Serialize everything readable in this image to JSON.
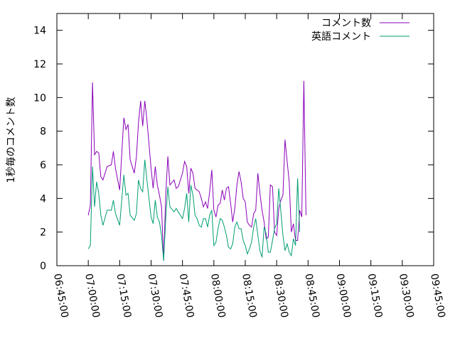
{
  "chart_data": {
    "type": "line",
    "ylabel": "1秒毎のコメント数",
    "xlabel": "",
    "ylim": [
      0,
      15
    ],
    "xlim": [
      "06:45:00",
      "09:45:00"
    ],
    "x_ticks": [
      "06:45:00",
      "07:00:00",
      "07:15:00",
      "07:30:00",
      "07:45:00",
      "08:00:00",
      "08:15:00",
      "08:30:00",
      "08:45:00",
      "09:00:00",
      "09:15:00",
      "09:30:00",
      "09:45:00"
    ],
    "y_ticks": [
      "0",
      "2",
      "4",
      "6",
      "8",
      "10",
      "12",
      "14"
    ],
    "legend_position": "top-right",
    "grid": false,
    "series": [
      {
        "name": "コメント数",
        "color": "#8a00b8",
        "points": [
          [
            "07:00:00",
            3.0
          ],
          [
            "07:01:00",
            3.6
          ],
          [
            "07:02:00",
            10.9
          ],
          [
            "07:03:00",
            6.6
          ],
          [
            "07:04:00",
            6.8
          ],
          [
            "07:05:00",
            6.7
          ],
          [
            "07:06:00",
            5.3
          ],
          [
            "07:07:00",
            5.1
          ],
          [
            "07:09:00",
            5.9
          ],
          [
            "07:11:00",
            6.0
          ],
          [
            "07:12:00",
            6.8
          ],
          [
            "07:13:00",
            5.8
          ],
          [
            "07:15:00",
            4.5
          ],
          [
            "07:17:00",
            8.8
          ],
          [
            "07:18:00",
            8.1
          ],
          [
            "07:19:00",
            8.4
          ],
          [
            "07:20:00",
            6.3
          ],
          [
            "07:22:00",
            5.5
          ],
          [
            "07:23:00",
            6.5
          ],
          [
            "07:24:00",
            8.5
          ],
          [
            "07:25:00",
            9.8
          ],
          [
            "07:26:00",
            8.3
          ],
          [
            "07:27:00",
            9.8
          ],
          [
            "07:28:00",
            8.7
          ],
          [
            "07:30:00",
            5.8
          ],
          [
            "07:31:00",
            4.6
          ],
          [
            "07:32:00",
            5.9
          ],
          [
            "07:33:00",
            4.8
          ],
          [
            "07:34:00",
            4.2
          ],
          [
            "07:35:00",
            3.5
          ],
          [
            "07:36:00",
            0.3
          ],
          [
            "07:37:00",
            4.2
          ],
          [
            "07:38:00",
            6.5
          ],
          [
            "07:39:00",
            4.8
          ],
          [
            "07:41:00",
            5.1
          ],
          [
            "07:42:00",
            4.6
          ],
          [
            "07:43:00",
            4.7
          ],
          [
            "07:45:00",
            5.5
          ],
          [
            "07:46:00",
            6.2
          ],
          [
            "07:47:00",
            5.9
          ],
          [
            "07:48:00",
            4.3
          ],
          [
            "07:49:00",
            5.8
          ],
          [
            "07:50:00",
            5.5
          ],
          [
            "07:51:00",
            4.6
          ],
          [
            "07:52:00",
            4.5
          ],
          [
            "07:53:00",
            4.4
          ],
          [
            "07:54:00",
            4.0
          ],
          [
            "07:55:00",
            3.5
          ],
          [
            "07:56:00",
            3.8
          ],
          [
            "07:57:00",
            3.4
          ],
          [
            "07:58:00",
            4.4
          ],
          [
            "07:59:00",
            5.7
          ],
          [
            "08:00:00",
            3.3
          ],
          [
            "08:01:00",
            2.9
          ],
          [
            "08:02:00",
            3.6
          ],
          [
            "08:03:00",
            3.7
          ],
          [
            "08:04:00",
            4.5
          ],
          [
            "08:05:00",
            3.9
          ],
          [
            "08:06:00",
            4.6
          ],
          [
            "08:07:00",
            4.7
          ],
          [
            "08:08:00",
            3.7
          ],
          [
            "08:09:00",
            2.6
          ],
          [
            "08:10:00",
            3.4
          ],
          [
            "08:11:00",
            4.8
          ],
          [
            "08:12:00",
            5.6
          ],
          [
            "08:13:00",
            5.0
          ],
          [
            "08:14:00",
            4.0
          ],
          [
            "08:15:00",
            3.8
          ],
          [
            "08:16:00",
            2.6
          ],
          [
            "08:17:00",
            2.4
          ],
          [
            "08:18:00",
            2.3
          ],
          [
            "08:19:00",
            3.1
          ],
          [
            "08:20:00",
            3.3
          ],
          [
            "08:21:00",
            5.5
          ],
          [
            "08:22:00",
            4.3
          ],
          [
            "08:23:00",
            3.3
          ],
          [
            "08:24:00",
            2.6
          ],
          [
            "08:25:00",
            1.6
          ],
          [
            "08:26:00",
            1.7
          ],
          [
            "08:27:00",
            4.8
          ],
          [
            "08:28:00",
            4.7
          ],
          [
            "08:29:00",
            2.0
          ],
          [
            "08:30:00",
            1.8
          ],
          [
            "08:31:00",
            3.4
          ],
          [
            "08:32:00",
            3.9
          ],
          [
            "08:33:00",
            4.2
          ],
          [
            "08:34:00",
            7.5
          ],
          [
            "08:35:00",
            6.2
          ],
          [
            "08:36:00",
            5.0
          ],
          [
            "08:37:00",
            2.0
          ],
          [
            "08:38:00",
            2.5
          ],
          [
            "08:39:00",
            1.5
          ],
          [
            "08:40:00",
            1.5
          ],
          [
            "08:41:00",
            3.3
          ],
          [
            "08:42:00",
            2.9
          ],
          [
            "08:43:00",
            11.0
          ],
          [
            "08:44:00",
            3.0
          ]
        ]
      },
      {
        "name": "英語コメント",
        "color": "#009e73",
        "points": [
          [
            "07:00:00",
            1.0
          ],
          [
            "07:01:00",
            1.2
          ],
          [
            "07:02:00",
            5.9
          ],
          [
            "07:03:00",
            3.5
          ],
          [
            "07:04:00",
            5.0
          ],
          [
            "07:05:00",
            4.3
          ],
          [
            "07:06:00",
            3.0
          ],
          [
            "07:07:00",
            2.4
          ],
          [
            "07:09:00",
            3.3
          ],
          [
            "07:11:00",
            3.3
          ],
          [
            "07:12:00",
            3.9
          ],
          [
            "07:13:00",
            3.1
          ],
          [
            "07:15:00",
            2.4
          ],
          [
            "07:17:00",
            5.4
          ],
          [
            "07:18:00",
            4.2
          ],
          [
            "07:19:00",
            4.3
          ],
          [
            "07:20:00",
            3.0
          ],
          [
            "07:22:00",
            2.7
          ],
          [
            "07:23:00",
            3.1
          ],
          [
            "07:24:00",
            5.1
          ],
          [
            "07:25:00",
            4.6
          ],
          [
            "07:26:00",
            4.4
          ],
          [
            "07:27:00",
            6.3
          ],
          [
            "07:28:00",
            5.1
          ],
          [
            "07:30:00",
            2.9
          ],
          [
            "07:31:00",
            2.5
          ],
          [
            "07:32:00",
            3.9
          ],
          [
            "07:33:00",
            2.9
          ],
          [
            "07:34:00",
            2.6
          ],
          [
            "07:35:00",
            1.8
          ],
          [
            "07:36:00",
            0.3
          ],
          [
            "07:37:00",
            2.8
          ],
          [
            "07:38:00",
            4.7
          ],
          [
            "07:39:00",
            3.5
          ],
          [
            "07:41:00",
            3.2
          ],
          [
            "07:42:00",
            3.4
          ],
          [
            "07:43:00",
            3.2
          ],
          [
            "07:45:00",
            2.8
          ],
          [
            "07:46:00",
            3.4
          ],
          [
            "07:47:00",
            4.3
          ],
          [
            "07:48:00",
            2.6
          ],
          [
            "07:49:00",
            4.8
          ],
          [
            "07:50:00",
            4.2
          ],
          [
            "07:51:00",
            3.0
          ],
          [
            "07:52:00",
            2.8
          ],
          [
            "07:53:00",
            2.4
          ],
          [
            "07:54:00",
            2.3
          ],
          [
            "07:55:00",
            2.8
          ],
          [
            "07:56:00",
            2.8
          ],
          [
            "07:57:00",
            2.3
          ],
          [
            "07:58:00",
            3.0
          ],
          [
            "07:59:00",
            3.3
          ],
          [
            "08:00:00",
            1.2
          ],
          [
            "08:01:00",
            1.4
          ],
          [
            "08:02:00",
            2.2
          ],
          [
            "08:03:00",
            2.8
          ],
          [
            "08:04:00",
            2.7
          ],
          [
            "08:05:00",
            2.3
          ],
          [
            "08:06:00",
            1.8
          ],
          [
            "08:07:00",
            1.1
          ],
          [
            "08:08:00",
            1.0
          ],
          [
            "08:09:00",
            1.3
          ],
          [
            "08:10:00",
            2.3
          ],
          [
            "08:11:00",
            2.6
          ],
          [
            "08:12:00",
            2.2
          ],
          [
            "08:13:00",
            2.2
          ],
          [
            "08:14:00",
            1.5
          ],
          [
            "08:15:00",
            1.2
          ],
          [
            "08:16:00",
            0.7
          ],
          [
            "08:17:00",
            1.0
          ],
          [
            "08:18:00",
            1.4
          ],
          [
            "08:19:00",
            2.3
          ],
          [
            "08:20:00",
            2.8
          ],
          [
            "08:21:00",
            1.8
          ],
          [
            "08:22:00",
            0.9
          ],
          [
            "08:23:00",
            0.5
          ],
          [
            "08:24:00",
            2.3
          ],
          [
            "08:25:00",
            1.9
          ],
          [
            "08:26:00",
            0.8
          ],
          [
            "08:27:00",
            0.8
          ],
          [
            "08:28:00",
            1.5
          ],
          [
            "08:29:00",
            2.2
          ],
          [
            "08:30:00",
            2.5
          ],
          [
            "08:31:00",
            4.6
          ],
          [
            "08:32:00",
            3.2
          ],
          [
            "08:33:00",
            1.8
          ],
          [
            "08:34:00",
            0.9
          ],
          [
            "08:35:00",
            1.3
          ],
          [
            "08:36:00",
            0.8
          ],
          [
            "08:37:00",
            0.6
          ],
          [
            "08:38:00",
            1.6
          ],
          [
            "08:39:00",
            1.2
          ],
          [
            "08:40:00",
            5.2
          ],
          [
            "08:41:00",
            2.0
          ]
        ]
      }
    ]
  }
}
